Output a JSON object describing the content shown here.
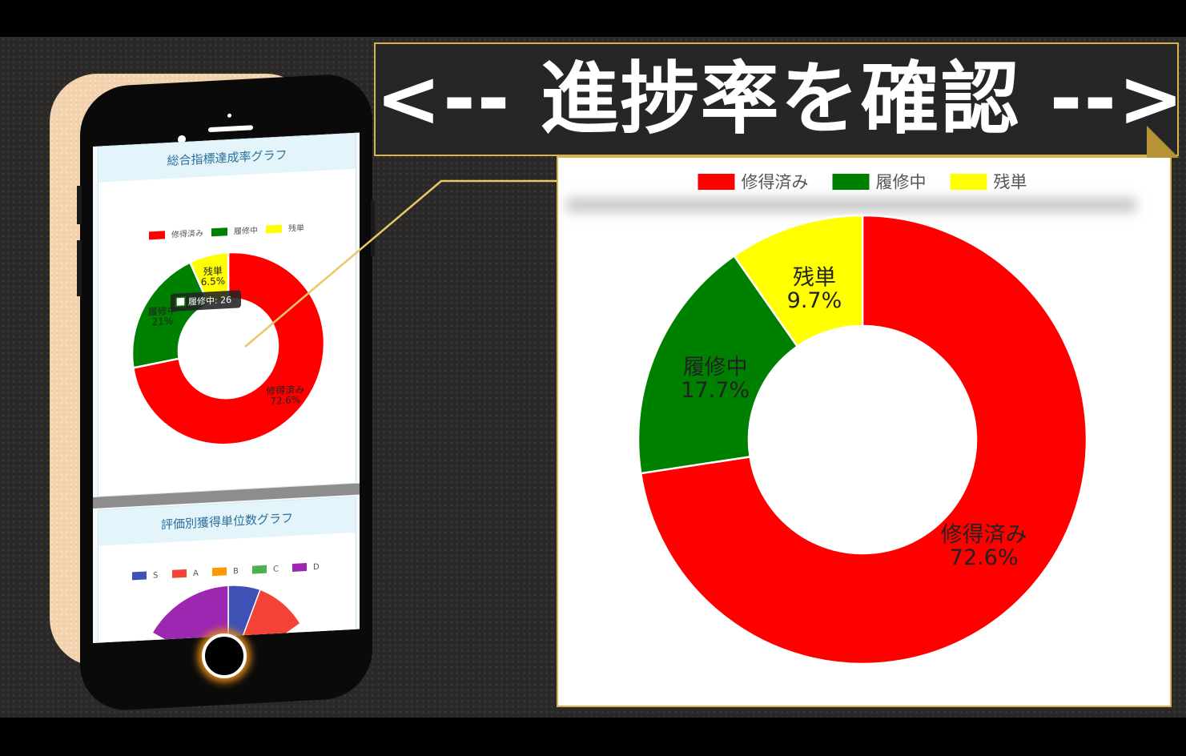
{
  "banner": {
    "text": "<-- 進捗率を確認 -->"
  },
  "phone": {
    "card1_title": "総合指標達成率グラフ",
    "card2_title": "評価別獲得単位数グラフ",
    "tooltip": "履修中: 26"
  },
  "chart_data": [
    {
      "type": "pie",
      "title": "総合指標達成率グラフ",
      "categories": [
        "修得済み",
        "履修中",
        "残単"
      ],
      "values": [
        72.6,
        20.9,
        6.5
      ],
      "value_labels": [
        "72.6%",
        "21%",
        "6.5%"
      ],
      "colors": [
        "#ff0000",
        "#008000",
        "#ffff00"
      ],
      "legend": "top",
      "tooltip": "履修中: 26"
    },
    {
      "type": "pie",
      "title": "評価別獲得単位数グラフ",
      "categories": [
        "S",
        "A",
        "B",
        "C",
        "D"
      ],
      "colors": [
        "#3f51b5",
        "#f44336",
        "#ff9800",
        "#4caf50",
        "#9c27b0"
      ],
      "legend": "top"
    },
    {
      "type": "pie",
      "title": "",
      "categories": [
        "修得済み",
        "履修中",
        "残単"
      ],
      "values": [
        72.6,
        17.7,
        9.7
      ],
      "value_labels": [
        "72.6%",
        "17.7%",
        "9.7%"
      ],
      "colors": [
        "#ff0000",
        "#008000",
        "#ffff00"
      ],
      "legend": "top"
    }
  ]
}
